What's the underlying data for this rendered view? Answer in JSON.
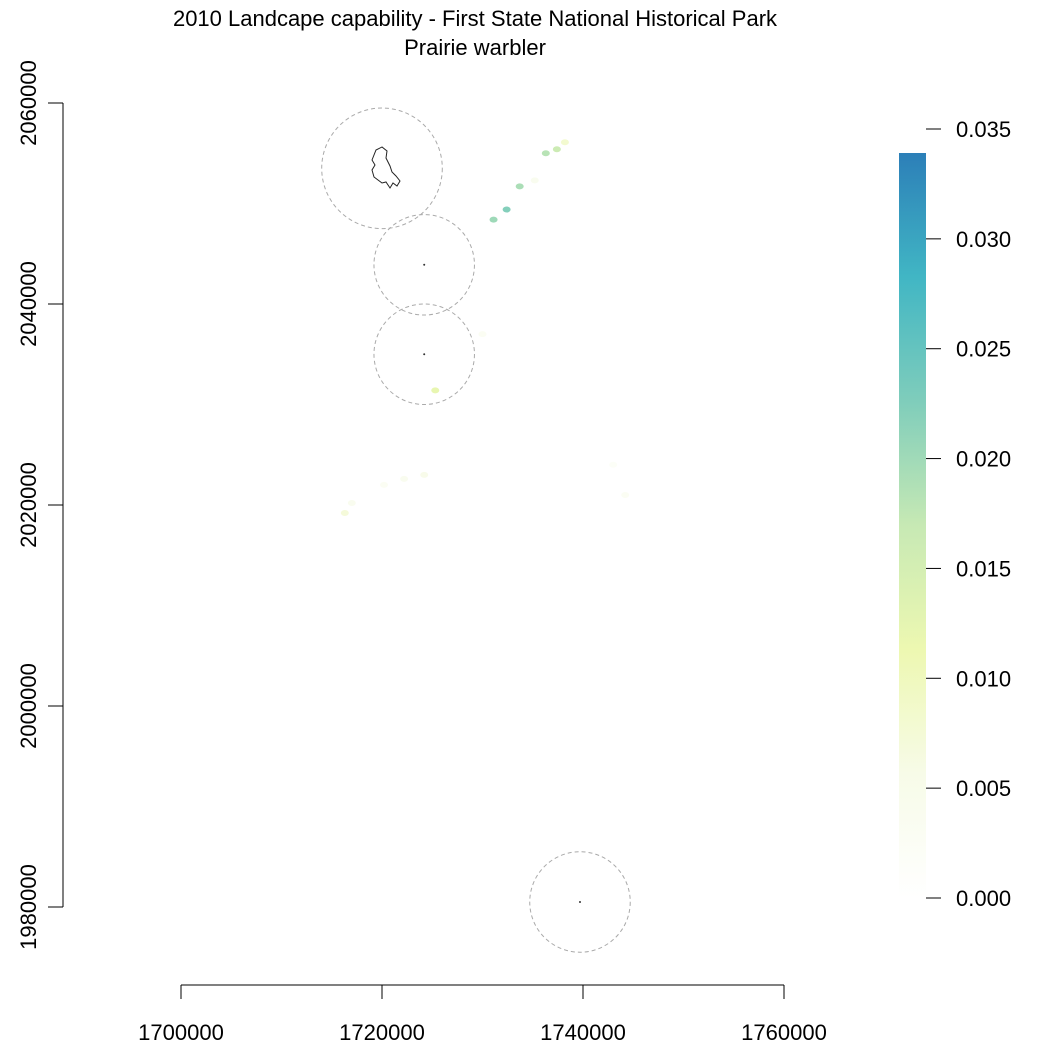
{
  "title": "2010 Landcape capability - First State National Historical Park",
  "subtitle": "Prairie warbler",
  "x_axis": {
    "ticks": [
      "1700000",
      "1720000",
      "1740000",
      "1760000"
    ]
  },
  "y_axis": {
    "ticks": [
      "1980000",
      "2000000",
      "2020000",
      "2040000",
      "2060000"
    ]
  },
  "legend": {
    "ticks": [
      "0.000",
      "0.005",
      "0.010",
      "0.015",
      "0.020",
      "0.025",
      "0.030",
      "0.035"
    ],
    "colors": [
      "#ffffff",
      "#f7fbe8",
      "#edf8b1",
      "#c7e9b4",
      "#7fcdbb",
      "#41b6c4",
      "#2c7fb8"
    ]
  },
  "buffers": [
    {
      "x": 1720000,
      "y": 2053500,
      "r": 6000
    },
    {
      "x": 1724200,
      "y": 2043900,
      "r": 5000
    },
    {
      "x": 1724200,
      "y": 2035000,
      "r": 5000
    },
    {
      "x": 1739700,
      "y": 1980500,
      "r": 5000
    }
  ],
  "park_centroids": [
    {
      "x": 1724200,
      "y": 2043900
    },
    {
      "x": 1724200,
      "y": 2035000
    },
    {
      "x": 1739700,
      "y": 1980500
    }
  ],
  "patches": [
    {
      "x": 1731100,
      "y": 2048400,
      "v": 0.02
    },
    {
      "x": 1732400,
      "y": 2049400,
      "v": 0.022
    },
    {
      "x": 1733700,
      "y": 2051700,
      "v": 0.019
    },
    {
      "x": 1736300,
      "y": 2055000,
      "v": 0.018
    },
    {
      "x": 1737400,
      "y": 2055400,
      "v": 0.016
    },
    {
      "x": 1738200,
      "y": 2056100,
      "v": 0.008
    },
    {
      "x": 1735200,
      "y": 2052300,
      "v": 0.004
    },
    {
      "x": 1725300,
      "y": 2031400,
      "v": 0.012
    },
    {
      "x": 1716300,
      "y": 2019200,
      "v": 0.007
    },
    {
      "x": 1717000,
      "y": 2020200,
      "v": 0.004
    },
    {
      "x": 1720200,
      "y": 2022000,
      "v": 0.003
    },
    {
      "x": 1722200,
      "y": 2022600,
      "v": 0.004
    },
    {
      "x": 1724200,
      "y": 2023000,
      "v": 0.005
    },
    {
      "x": 1744200,
      "y": 2021000,
      "v": 0.003
    },
    {
      "x": 1730000,
      "y": 2037000,
      "v": 0.003
    },
    {
      "x": 1743000,
      "y": 2024000,
      "v": 0.002
    }
  ]
}
